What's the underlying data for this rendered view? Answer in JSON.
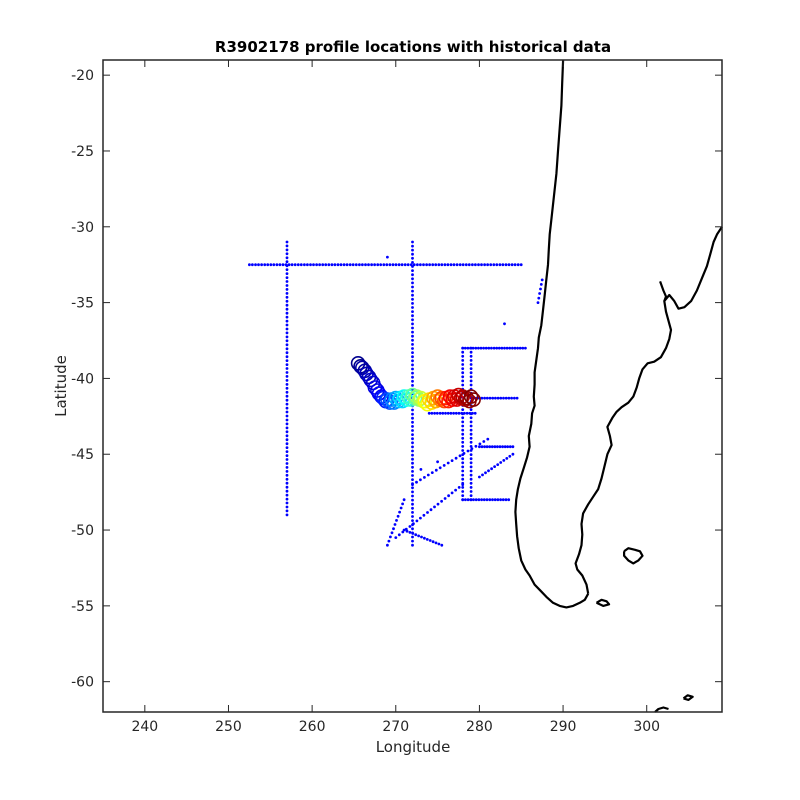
{
  "chart_data": {
    "type": "scatter",
    "title": "R3902178 profile locations with historical data",
    "xlabel": "Longitude",
    "ylabel": "Latitude",
    "xlim": [
      235,
      309
    ],
    "ylim": [
      -62,
      -19
    ],
    "xticks": [
      240,
      250,
      260,
      270,
      280,
      290,
      300
    ],
    "yticks": [
      -20,
      -25,
      -30,
      -35,
      -40,
      -45,
      -50,
      -55,
      -60
    ],
    "grid": false,
    "colors": {
      "historical": "#0000ff",
      "coastline": "#000000",
      "float_colormap": [
        "#00008f",
        "#0000ff",
        "#00ffff",
        "#ffff00",
        "#ff0000",
        "#800000"
      ]
    },
    "historical_segments": [
      {
        "x0": 252.5,
        "y0": -32.5,
        "x1": 285.0,
        "y1": -32.5,
        "n": 90
      },
      {
        "x0": 257.0,
        "y0": -31.0,
        "x1": 257.0,
        "y1": -49.0,
        "n": 70
      },
      {
        "x0": 272.0,
        "y0": -31.0,
        "x1": 272.0,
        "y1": -51.0,
        "n": 75
      },
      {
        "x0": 278.0,
        "y0": -38.0,
        "x1": 278.0,
        "y1": -48.0,
        "n": 38
      },
      {
        "x0": 279.0,
        "y0": -38.0,
        "x1": 279.0,
        "y1": -48.0,
        "n": 38
      },
      {
        "x0": 278.0,
        "y0": -38.0,
        "x1": 285.5,
        "y1": -38.0,
        "n": 25
      },
      {
        "x0": 279.0,
        "y0": -41.3,
        "x1": 284.5,
        "y1": -41.3,
        "n": 18
      },
      {
        "x0": 280.0,
        "y0": -44.5,
        "x1": 284.0,
        "y1": -44.5,
        "n": 14
      },
      {
        "x0": 278.0,
        "y0": -48.0,
        "x1": 283.5,
        "y1": -48.0,
        "n": 18
      },
      {
        "x0": 272.0,
        "y0": -47.0,
        "x1": 281.0,
        "y1": -44.0,
        "n": 20
      },
      {
        "x0": 270.0,
        "y0": -50.5,
        "x1": 278.0,
        "y1": -47.0,
        "n": 20
      },
      {
        "x0": 271.0,
        "y0": -50.0,
        "x1": 275.5,
        "y1": -51.0,
        "n": 14
      },
      {
        "x0": 280.0,
        "y0": -46.5,
        "x1": 284.0,
        "y1": -45.0,
        "n": 12
      },
      {
        "x0": 269.0,
        "y0": -51.0,
        "x1": 271.0,
        "y1": -48.0,
        "n": 12
      },
      {
        "x0": 287.5,
        "y0": -33.5,
        "x1": 287.0,
        "y1": -35.0,
        "n": 6
      },
      {
        "x0": 274.0,
        "y0": -42.3,
        "x1": 279.5,
        "y1": -42.3,
        "n": 18
      }
    ],
    "historical_points": [
      [
        269.0,
        -32.0
      ],
      [
        283.0,
        -36.4
      ],
      [
        273.0,
        -46.0
      ],
      [
        275.0,
        -45.5
      ]
    ],
    "float_track": [
      [
        265.5,
        -39.0
      ],
      [
        266.0,
        -39.3
      ],
      [
        266.5,
        -39.7
      ],
      [
        267.0,
        -40.1
      ],
      [
        267.5,
        -40.6
      ],
      [
        268.0,
        -41.0
      ],
      [
        268.5,
        -41.3
      ],
      [
        269.0,
        -41.4
      ],
      [
        269.5,
        -41.4
      ],
      [
        270.0,
        -41.3
      ],
      [
        270.5,
        -41.3
      ],
      [
        271.0,
        -41.2
      ],
      [
        271.5,
        -41.2
      ],
      [
        272.0,
        -41.1
      ],
      [
        272.5,
        -41.2
      ],
      [
        273.0,
        -41.3
      ],
      [
        273.5,
        -41.5
      ],
      [
        274.0,
        -41.4
      ],
      [
        274.5,
        -41.3
      ],
      [
        275.0,
        -41.2
      ],
      [
        275.5,
        -41.3
      ],
      [
        276.0,
        -41.3
      ],
      [
        276.5,
        -41.2
      ],
      [
        277.0,
        -41.2
      ],
      [
        277.5,
        -41.1
      ],
      [
        278.0,
        -41.2
      ],
      [
        278.5,
        -41.3
      ],
      [
        279.0,
        -41.2
      ]
    ],
    "coastline": [
      [
        [
          290.0,
          -19.0
        ],
        [
          289.9,
          -20.5
        ],
        [
          289.8,
          -22.0
        ],
        [
          289.6,
          -23.5
        ],
        [
          289.4,
          -25.0
        ],
        [
          289.2,
          -26.5
        ],
        [
          288.9,
          -28.0
        ],
        [
          288.6,
          -29.5
        ],
        [
          288.4,
          -30.5
        ],
        [
          288.3,
          -31.5
        ],
        [
          288.2,
          -32.5
        ],
        [
          288.0,
          -33.5
        ],
        [
          287.8,
          -34.5
        ],
        [
          287.6,
          -35.5
        ],
        [
          287.4,
          -36.5
        ],
        [
          287.1,
          -37.3
        ],
        [
          287.0,
          -38.0
        ],
        [
          286.8,
          -38.8
        ],
        [
          286.6,
          -39.6
        ],
        [
          286.6,
          -40.4
        ],
        [
          286.5,
          -41.2
        ],
        [
          286.6,
          -41.8
        ],
        [
          286.3,
          -42.3
        ],
        [
          286.2,
          -43.0
        ],
        [
          285.9,
          -43.8
        ],
        [
          286.0,
          -44.5
        ],
        [
          285.7,
          -45.2
        ],
        [
          285.3,
          -45.9
        ],
        [
          284.9,
          -46.6
        ],
        [
          284.6,
          -47.3
        ],
        [
          284.4,
          -48.0
        ],
        [
          284.3,
          -48.8
        ],
        [
          284.4,
          -49.6
        ],
        [
          284.5,
          -50.4
        ],
        [
          284.7,
          -51.2
        ],
        [
          285.0,
          -52.0
        ],
        [
          285.5,
          -52.6
        ],
        [
          286.0,
          -53.0
        ],
        [
          286.6,
          -53.6
        ],
        [
          287.3,
          -54.0
        ],
        [
          288.0,
          -54.4
        ],
        [
          288.8,
          -54.8
        ],
        [
          289.6,
          -55.0
        ],
        [
          290.4,
          -55.1
        ],
        [
          291.2,
          -55.0
        ],
        [
          292.0,
          -54.8
        ],
        [
          292.6,
          -54.6
        ],
        [
          293.0,
          -54.2
        ]
      ],
      [
        [
          293.0,
          -54.2
        ],
        [
          292.8,
          -53.6
        ],
        [
          292.3,
          -53.0
        ],
        [
          291.7,
          -52.6
        ],
        [
          291.5,
          -52.2
        ],
        [
          291.9,
          -51.6
        ],
        [
          292.2,
          -51.0
        ],
        [
          292.3,
          -50.3
        ],
        [
          292.2,
          -49.6
        ],
        [
          292.4,
          -48.9
        ],
        [
          293.0,
          -48.3
        ],
        [
          293.6,
          -47.8
        ],
        [
          294.2,
          -47.3
        ],
        [
          294.6,
          -46.6
        ],
        [
          294.9,
          -45.9
        ],
        [
          295.3,
          -45.0
        ],
        [
          295.8,
          -44.4
        ],
        [
          295.6,
          -43.8
        ],
        [
          295.3,
          -43.2
        ],
        [
          295.9,
          -42.6
        ],
        [
          296.4,
          -42.2
        ],
        [
          297.0,
          -41.9
        ],
        [
          297.8,
          -41.6
        ],
        [
          298.4,
          -41.2
        ],
        [
          298.8,
          -40.6
        ],
        [
          299.1,
          -40.0
        ],
        [
          299.5,
          -39.4
        ],
        [
          300.1,
          -39.0
        ],
        [
          300.9,
          -38.9
        ],
        [
          301.7,
          -38.6
        ],
        [
          302.3,
          -38.0
        ],
        [
          302.7,
          -37.4
        ],
        [
          302.9,
          -36.8
        ],
        [
          302.6,
          -36.2
        ],
        [
          302.3,
          -35.6
        ],
        [
          302.1,
          -34.9
        ],
        [
          302.7,
          -34.5
        ],
        [
          303.3,
          -34.9
        ],
        [
          303.8,
          -35.4
        ],
        [
          304.5,
          -35.3
        ],
        [
          305.3,
          -34.9
        ],
        [
          306.0,
          -34.2
        ],
        [
          306.6,
          -33.4
        ],
        [
          307.2,
          -32.6
        ],
        [
          307.6,
          -31.8
        ],
        [
          308.0,
          -31.0
        ],
        [
          308.4,
          -30.5
        ],
        [
          309.0,
          -30.0
        ]
      ],
      [
        [
          301.6,
          -33.6
        ],
        [
          302.0,
          -34.2
        ],
        [
          302.3,
          -34.6
        ],
        [
          302.1,
          -34.9
        ]
      ],
      [
        [
          297.3,
          -51.4
        ],
        [
          297.8,
          -51.2
        ],
        [
          298.6,
          -51.3
        ],
        [
          299.2,
          -51.4
        ],
        [
          299.5,
          -51.7
        ],
        [
          299.0,
          -52.0
        ],
        [
          298.4,
          -52.2
        ],
        [
          297.8,
          -52.0
        ],
        [
          297.3,
          -51.7
        ],
        [
          297.3,
          -51.4
        ]
      ],
      [
        [
          294.0,
          -54.8
        ],
        [
          294.6,
          -54.6
        ],
        [
          295.2,
          -54.7
        ],
        [
          295.5,
          -54.9
        ],
        [
          294.8,
          -55.0
        ],
        [
          294.0,
          -54.8
        ]
      ],
      [
        [
          301.0,
          -62.0
        ],
        [
          301.4,
          -61.8
        ],
        [
          302.0,
          -61.7
        ],
        [
          302.6,
          -61.8
        ]
      ],
      [
        [
          304.4,
          -61.1
        ],
        [
          304.9,
          -60.9
        ],
        [
          305.5,
          -61.0
        ],
        [
          305.0,
          -61.2
        ],
        [
          304.4,
          -61.1
        ]
      ]
    ]
  }
}
